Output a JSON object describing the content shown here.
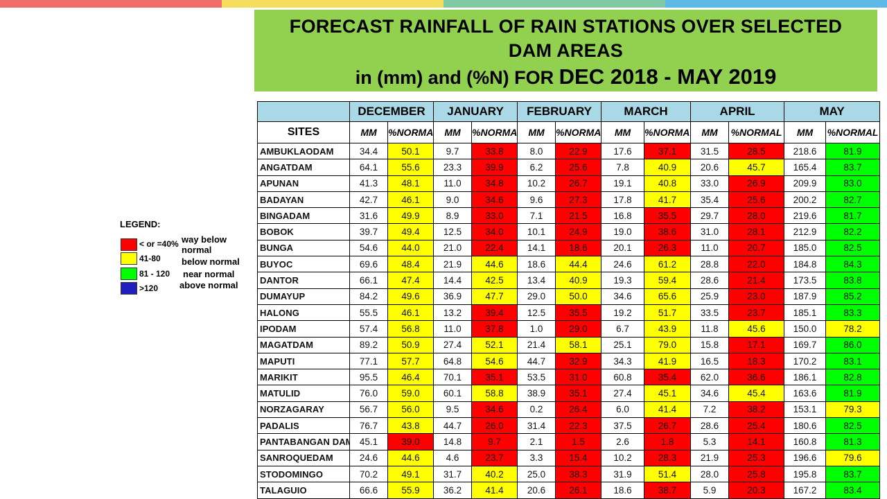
{
  "colors": {
    "topbar": [
      "#f26b6b",
      "#f4dd5c",
      "#7fc8a4",
      "#5cb8e6"
    ],
    "title_bg": "#92d050",
    "header_bg": "#a9d8e6",
    "red": "#ff0000",
    "yellow": "#ffff00",
    "green": "#00ff00",
    "blue": "#1f1fbf"
  },
  "title": {
    "line1": "FORECAST RAINFALL OF RAIN STATIONS OVER SELECTED",
    "line2": "DAM AREAS",
    "line3_a": "in (mm) and (%N) FOR ",
    "line3_b": "DEC 2018 - MAY 2019"
  },
  "legend": {
    "title": "LEGEND:",
    "items": [
      {
        "color": "red",
        "range": "< or =40%",
        "label": "way below normal"
      },
      {
        "color": "yellow",
        "range": "41-80",
        "label": "below normal"
      },
      {
        "color": "green",
        "range": "81 - 120",
        "label": "near normal"
      },
      {
        "color": "blue",
        "range": ">120",
        "label": "above normal"
      }
    ]
  },
  "table": {
    "sites_header": "SITES",
    "months": [
      "DECEMBER",
      "JANUARY",
      "FEBRUARY",
      "MARCH",
      "APRIL",
      "MAY"
    ],
    "sub_mm": "MM",
    "sub_pct": "%NORMAL",
    "rows": [
      {
        "site": "AMBUKLAODAM",
        "values": [
          "34.4",
          "50.1",
          "9.7",
          "33.8",
          "8.0",
          "22.9",
          "17.6",
          "37.1",
          "31.5",
          "28.5",
          "218.6",
          "81.9"
        ]
      },
      {
        "site": "ANGATDAM",
        "values": [
          "64.1",
          "55.6",
          "23.3",
          "39.9",
          "6.2",
          "25.6",
          "7.8",
          "40.9",
          "20.6",
          "45.7",
          "165.4",
          "83.7"
        ]
      },
      {
        "site": "APUNAN",
        "values": [
          "41.3",
          "48.1",
          "11.0",
          "34.8",
          "10.2",
          "26.7",
          "19.1",
          "40.8",
          "33.0",
          "26.9",
          "209.9",
          "83.0"
        ]
      },
      {
        "site": "BADAYAN",
        "values": [
          "42.7",
          "46.1",
          "9.0",
          "34.6",
          "9.6",
          "27.3",
          "17.8",
          "41.7",
          "35.4",
          "25.6",
          "200.2",
          "82.7"
        ]
      },
      {
        "site": "BINGADAM",
        "values": [
          "31.6",
          "49.9",
          "8.9",
          "33.0",
          "7.1",
          "21.5",
          "16.8",
          "35.5",
          "29.7",
          "28.0",
          "219.6",
          "81.7"
        ]
      },
      {
        "site": "BOBOK",
        "values": [
          "39.7",
          "49.4",
          "12.5",
          "34.0",
          "10.1",
          "24.9",
          "19.0",
          "38.6",
          "31.0",
          "28.1",
          "212.9",
          "82.2"
        ]
      },
      {
        "site": "BUNGA",
        "values": [
          "54.6",
          "44.0",
          "21.0",
          "22.4",
          "14.1",
          "18.6",
          "20.1",
          "26.3",
          "11.0",
          "20.7",
          "185.0",
          "82.5"
        ]
      },
      {
        "site": "BUYOC",
        "values": [
          "69.6",
          "48.4",
          "21.9",
          "44.6",
          "18.6",
          "44.4",
          "24.6",
          "61.2",
          "28.8",
          "22.0",
          "184.8",
          "84.3"
        ]
      },
      {
        "site": "DANTOR",
        "values": [
          "66.1",
          "47.4",
          "14.4",
          "42.5",
          "13.4",
          "40.9",
          "19.3",
          "59.4",
          "28.6",
          "21.4",
          "173.5",
          "83.8"
        ]
      },
      {
        "site": "DUMAYUP",
        "values": [
          "84.2",
          "49.6",
          "36.9",
          "47.7",
          "29.0",
          "50.0",
          "34.6",
          "65.6",
          "25.9",
          "23.0",
          "187.9",
          "85.2"
        ]
      },
      {
        "site": "HALONG",
        "values": [
          "55.5",
          "46.1",
          "13.2",
          "39.4",
          "12.5",
          "35.5",
          "19.2",
          "51.7",
          "33.5",
          "23.7",
          "185.1",
          "83.3"
        ]
      },
      {
        "site": "IPODAM",
        "values": [
          "57.4",
          "56.8",
          "11.0",
          "37.8",
          "1.0",
          "29.0",
          "6.7",
          "43.9",
          "11.8",
          "45.6",
          "150.0",
          "78.2"
        ]
      },
      {
        "site": "MAGATDAM",
        "values": [
          "89.2",
          "50.9",
          "27.4",
          "52.1",
          "21.4",
          "58.1",
          "25.1",
          "79.0",
          "15.8",
          "17.1",
          "169.7",
          "86.0"
        ]
      },
      {
        "site": "MAPUTI",
        "values": [
          "77.1",
          "57.7",
          "64.8",
          "54.6",
          "44.7",
          "32.9",
          "34.3",
          "41.9",
          "16.5",
          "18.3",
          "170.2",
          "83.1"
        ]
      },
      {
        "site": "MARIKIT",
        "values": [
          "95.5",
          "46.4",
          "70.1",
          "35.1",
          "53.5",
          "31.0",
          "60.8",
          "35.4",
          "62.0",
          "36.6",
          "186.1",
          "82.8"
        ]
      },
      {
        "site": "MATULID",
        "values": [
          "76.0",
          "59.0",
          "60.1",
          "58.8",
          "38.9",
          "35.1",
          "27.4",
          "45.1",
          "34.6",
          "45.4",
          "163.6",
          "81.9"
        ]
      },
      {
        "site": "NORZAGARAY",
        "values": [
          "56.7",
          "56.0",
          "9.5",
          "34.6",
          "0.2",
          "26.4",
          "6.0",
          "41.4",
          "7.2",
          "38.2",
          "153.1",
          "79.3"
        ]
      },
      {
        "site": "PADALIS",
        "values": [
          "76.7",
          "43.8",
          "44.7",
          "26.0",
          "31.4",
          "22.3",
          "37.5",
          "26.7",
          "28.6",
          "25.4",
          "180.6",
          "82.5"
        ]
      },
      {
        "site": "PANTABANGAN DAM",
        "values": [
          "45.1",
          "39.0",
          "14.8",
          "9.7",
          "2.1",
          "1.5",
          "2.6",
          "1.8",
          "5.3",
          "14.1",
          "160.8",
          "81.3"
        ]
      },
      {
        "site": "SANROQUEDAM",
        "values": [
          "24.6",
          "44.6",
          "4.6",
          "23.7",
          "3.3",
          "15.4",
          "10.2",
          "28.3",
          "21.9",
          "25.3",
          "196.6",
          "79.6"
        ]
      },
      {
        "site": "STODOMINGO",
        "values": [
          "70.2",
          "49.1",
          "31.7",
          "40.2",
          "25.0",
          "38.3",
          "31.9",
          "51.4",
          "28.0",
          "25.8",
          "195.8",
          "83.7"
        ]
      },
      {
        "site": "TALAGUIO",
        "values": [
          "66.6",
          "55.9",
          "36.2",
          "41.4",
          "20.6",
          "26.1",
          "18.6",
          "38.7",
          "5.9",
          "20.3",
          "167.2",
          "83.4"
        ]
      }
    ]
  }
}
